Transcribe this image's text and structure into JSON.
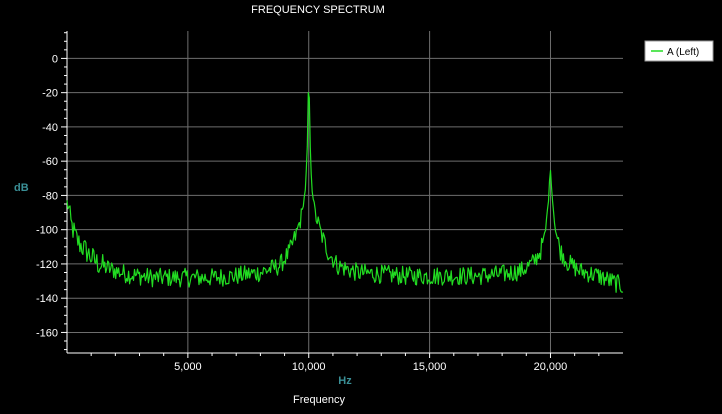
{
  "chart_data": {
    "type": "line",
    "title": "FREQUENCY SPECTRUM",
    "xlabel": "Frequency",
    "xunit": "Hz",
    "ylabel": "dB",
    "xlim": [
      0,
      23000
    ],
    "ylim": [
      -172,
      16
    ],
    "x_ticks": [
      5000,
      10000,
      15000,
      20000
    ],
    "x_tick_labels": [
      "5,000",
      "10,000",
      "15,000",
      "20,000"
    ],
    "y_ticks": [
      0,
      -20,
      -40,
      -60,
      -80,
      -100,
      -120,
      -140,
      -160
    ],
    "y_tick_labels": [
      "0",
      "-20",
      "-40",
      "-60",
      "-80",
      "-100",
      "-120",
      "-140",
      "-160"
    ],
    "grid": true,
    "legend_position": "top-right",
    "background_color": "#000000",
    "grid_color": "#6e6e6e",
    "series": [
      {
        "name": "A (Left)",
        "color": "#22dd22",
        "points": [
          [
            50,
            -85
          ],
          [
            150,
            -96
          ],
          [
            250,
            -100
          ],
          [
            350,
            -104
          ],
          [
            500,
            -108
          ],
          [
            700,
            -111
          ],
          [
            1000,
            -116
          ],
          [
            1300,
            -120
          ],
          [
            1600,
            -122
          ],
          [
            2000,
            -124
          ],
          [
            2500,
            -126
          ],
          [
            3000,
            -127
          ],
          [
            3500,
            -128
          ],
          [
            4000,
            -128
          ],
          [
            5000,
            -128
          ],
          [
            6000,
            -128
          ],
          [
            7000,
            -127
          ],
          [
            8000,
            -125
          ],
          [
            8800,
            -121
          ],
          [
            9200,
            -113
          ],
          [
            9500,
            -102
          ],
          [
            9700,
            -92
          ],
          [
            9850,
            -78
          ],
          [
            9930,
            -58
          ],
          [
            9970,
            -32
          ],
          [
            10000,
            -1
          ],
          [
            10030,
            -32
          ],
          [
            10070,
            -58
          ],
          [
            10150,
            -78
          ],
          [
            10300,
            -92
          ],
          [
            10500,
            -102
          ],
          [
            10800,
            -113
          ],
          [
            11200,
            -121
          ],
          [
            12000,
            -125
          ],
          [
            13000,
            -126
          ],
          [
            14000,
            -127
          ],
          [
            15000,
            -127
          ],
          [
            16000,
            -127
          ],
          [
            17000,
            -127
          ],
          [
            18000,
            -126
          ],
          [
            18800,
            -124
          ],
          [
            19300,
            -119
          ],
          [
            19600,
            -112
          ],
          [
            19800,
            -100
          ],
          [
            19920,
            -82
          ],
          [
            20000,
            -64
          ],
          [
            20080,
            -82
          ],
          [
            20200,
            -100
          ],
          [
            20400,
            -112
          ],
          [
            20700,
            -119
          ],
          [
            21200,
            -124
          ],
          [
            22000,
            -127
          ],
          [
            22500,
            -130
          ],
          [
            23000,
            -133
          ]
        ]
      }
    ]
  }
}
